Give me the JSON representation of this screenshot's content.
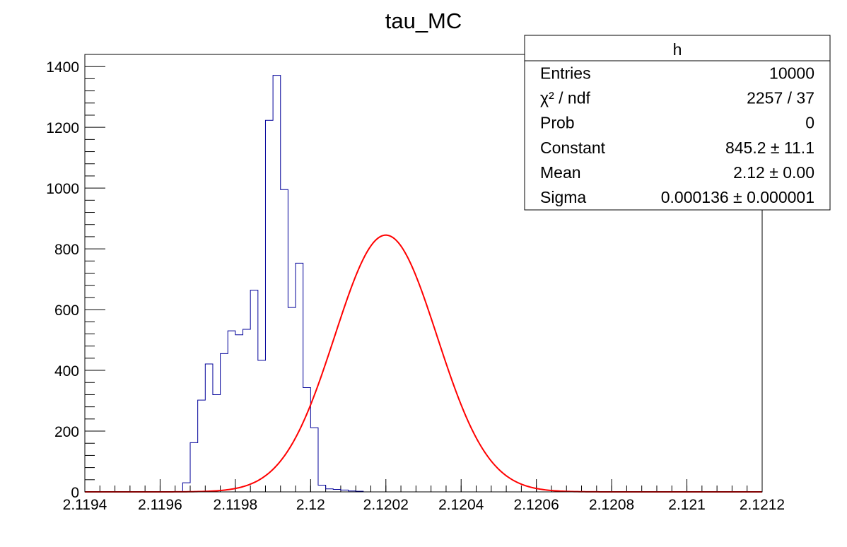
{
  "chart_data": {
    "type": "histogram",
    "title": "tau_MC",
    "xlabel": "",
    "ylabel": "",
    "xlim": [
      2.1194,
      2.1212
    ],
    "ylim": [
      0,
      1440
    ],
    "grid": false,
    "x_ticks": [
      {
        "value": 2.1194,
        "label": "2.1194"
      },
      {
        "value": 2.1196,
        "label": "2.1196"
      },
      {
        "value": 2.1198,
        "label": "2.1198"
      },
      {
        "value": 2.12,
        "label": "2.12"
      },
      {
        "value": 2.1202,
        "label": "2.1202"
      },
      {
        "value": 2.1204,
        "label": "2.1204"
      },
      {
        "value": 2.1206,
        "label": "2.1206"
      },
      {
        "value": 2.1208,
        "label": "2.1208"
      },
      {
        "value": 2.121,
        "label": "2.121"
      },
      {
        "value": 2.1212,
        "label": "2.1212"
      }
    ],
    "y_ticks": [
      {
        "value": 0,
        "label": "0"
      },
      {
        "value": 200,
        "label": "200"
      },
      {
        "value": 400,
        "label": "400"
      },
      {
        "value": 600,
        "label": "600"
      },
      {
        "value": 800,
        "label": "800"
      },
      {
        "value": 1000,
        "label": "1000"
      },
      {
        "value": 1200,
        "label": "1200"
      },
      {
        "value": 1400,
        "label": "1400"
      }
    ],
    "histogram": {
      "color": "#000099",
      "bin_edges_start": 2.1194,
      "bin_width": 2e-05,
      "counts": [
        0,
        0,
        0,
        0,
        0,
        0,
        0,
        0,
        0,
        0,
        0,
        0,
        0,
        30,
        162,
        302,
        421,
        320,
        455,
        530,
        517,
        535,
        664,
        433,
        1223,
        1371,
        995,
        607,
        753,
        343,
        211,
        22,
        10,
        8,
        6,
        3,
        2,
        0,
        0,
        0,
        0,
        0,
        0,
        0,
        0,
        0,
        0,
        0,
        0,
        0,
        0,
        0,
        0,
        0,
        0,
        0,
        0,
        0,
        0,
        0,
        0,
        0,
        0,
        0,
        0,
        0,
        0,
        0,
        0,
        0,
        0,
        0,
        0,
        0,
        0,
        0,
        0,
        0,
        0,
        0,
        0,
        0,
        0,
        0,
        0,
        0,
        0,
        0,
        0,
        0
      ]
    },
    "fit": {
      "color": "#ff0000",
      "function": "gaus",
      "constant": 845.2,
      "mean": 2.1202,
      "sigma": 0.000136
    },
    "stats_box": {
      "title": "h",
      "rows": [
        {
          "label": "Entries",
          "value": "10000"
        },
        {
          "label": "χ² / ndf",
          "value": "2257 / 37"
        },
        {
          "label": "Prob",
          "value": "0"
        },
        {
          "label": "Constant",
          "value": "845.2 ± 11.1"
        },
        {
          "label": "Mean",
          "value": "2.12 ± 0.00"
        },
        {
          "label": "Sigma",
          "value": "0.000136 ± 0.000001"
        }
      ]
    }
  }
}
